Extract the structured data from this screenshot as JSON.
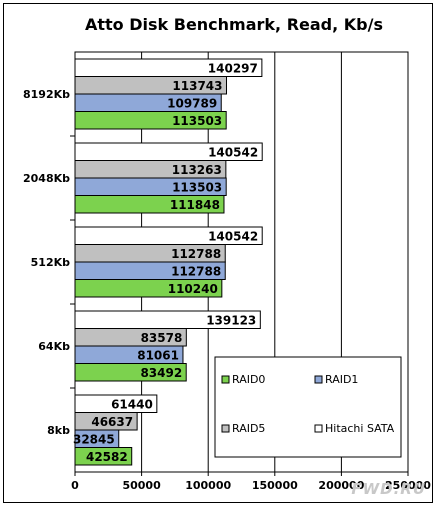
{
  "chart_data": {
    "type": "bar",
    "orientation": "horizontal",
    "title": "Atto Disk Benchmark, Read, Kb/s",
    "xlabel": "",
    "ylabel": "",
    "xlim": [
      0,
      250000
    ],
    "x_ticks": [
      "0",
      "50000",
      "100000",
      "150000",
      "200000",
      "250000"
    ],
    "grid": true,
    "legend_placement": "bottom-right",
    "categories": [
      "8192Kb",
      "2048Kb",
      "512Kb",
      "64Kb",
      "8kb"
    ],
    "series": [
      {
        "name": "Hitachi SATA",
        "color": "#ffffff",
        "values": [
          140297,
          140542,
          140542,
          139123,
          61440
        ]
      },
      {
        "name": "RAID5",
        "color": "#c0c0c0",
        "values": [
          113743,
          113263,
          112788,
          83578,
          46637
        ]
      },
      {
        "name": "RAID1",
        "color": "#8fa8d8",
        "values": [
          109789,
          113503,
          112788,
          81061,
          32845
        ]
      },
      {
        "name": "RAID0",
        "color": "#7cd24e",
        "values": [
          113503,
          111848,
          110240,
          83492,
          42582
        ]
      }
    ],
    "legend_order": [
      "RAID0",
      "RAID1",
      "RAID5",
      "Hitachi SATA"
    ]
  },
  "watermark": "FWD.RU"
}
